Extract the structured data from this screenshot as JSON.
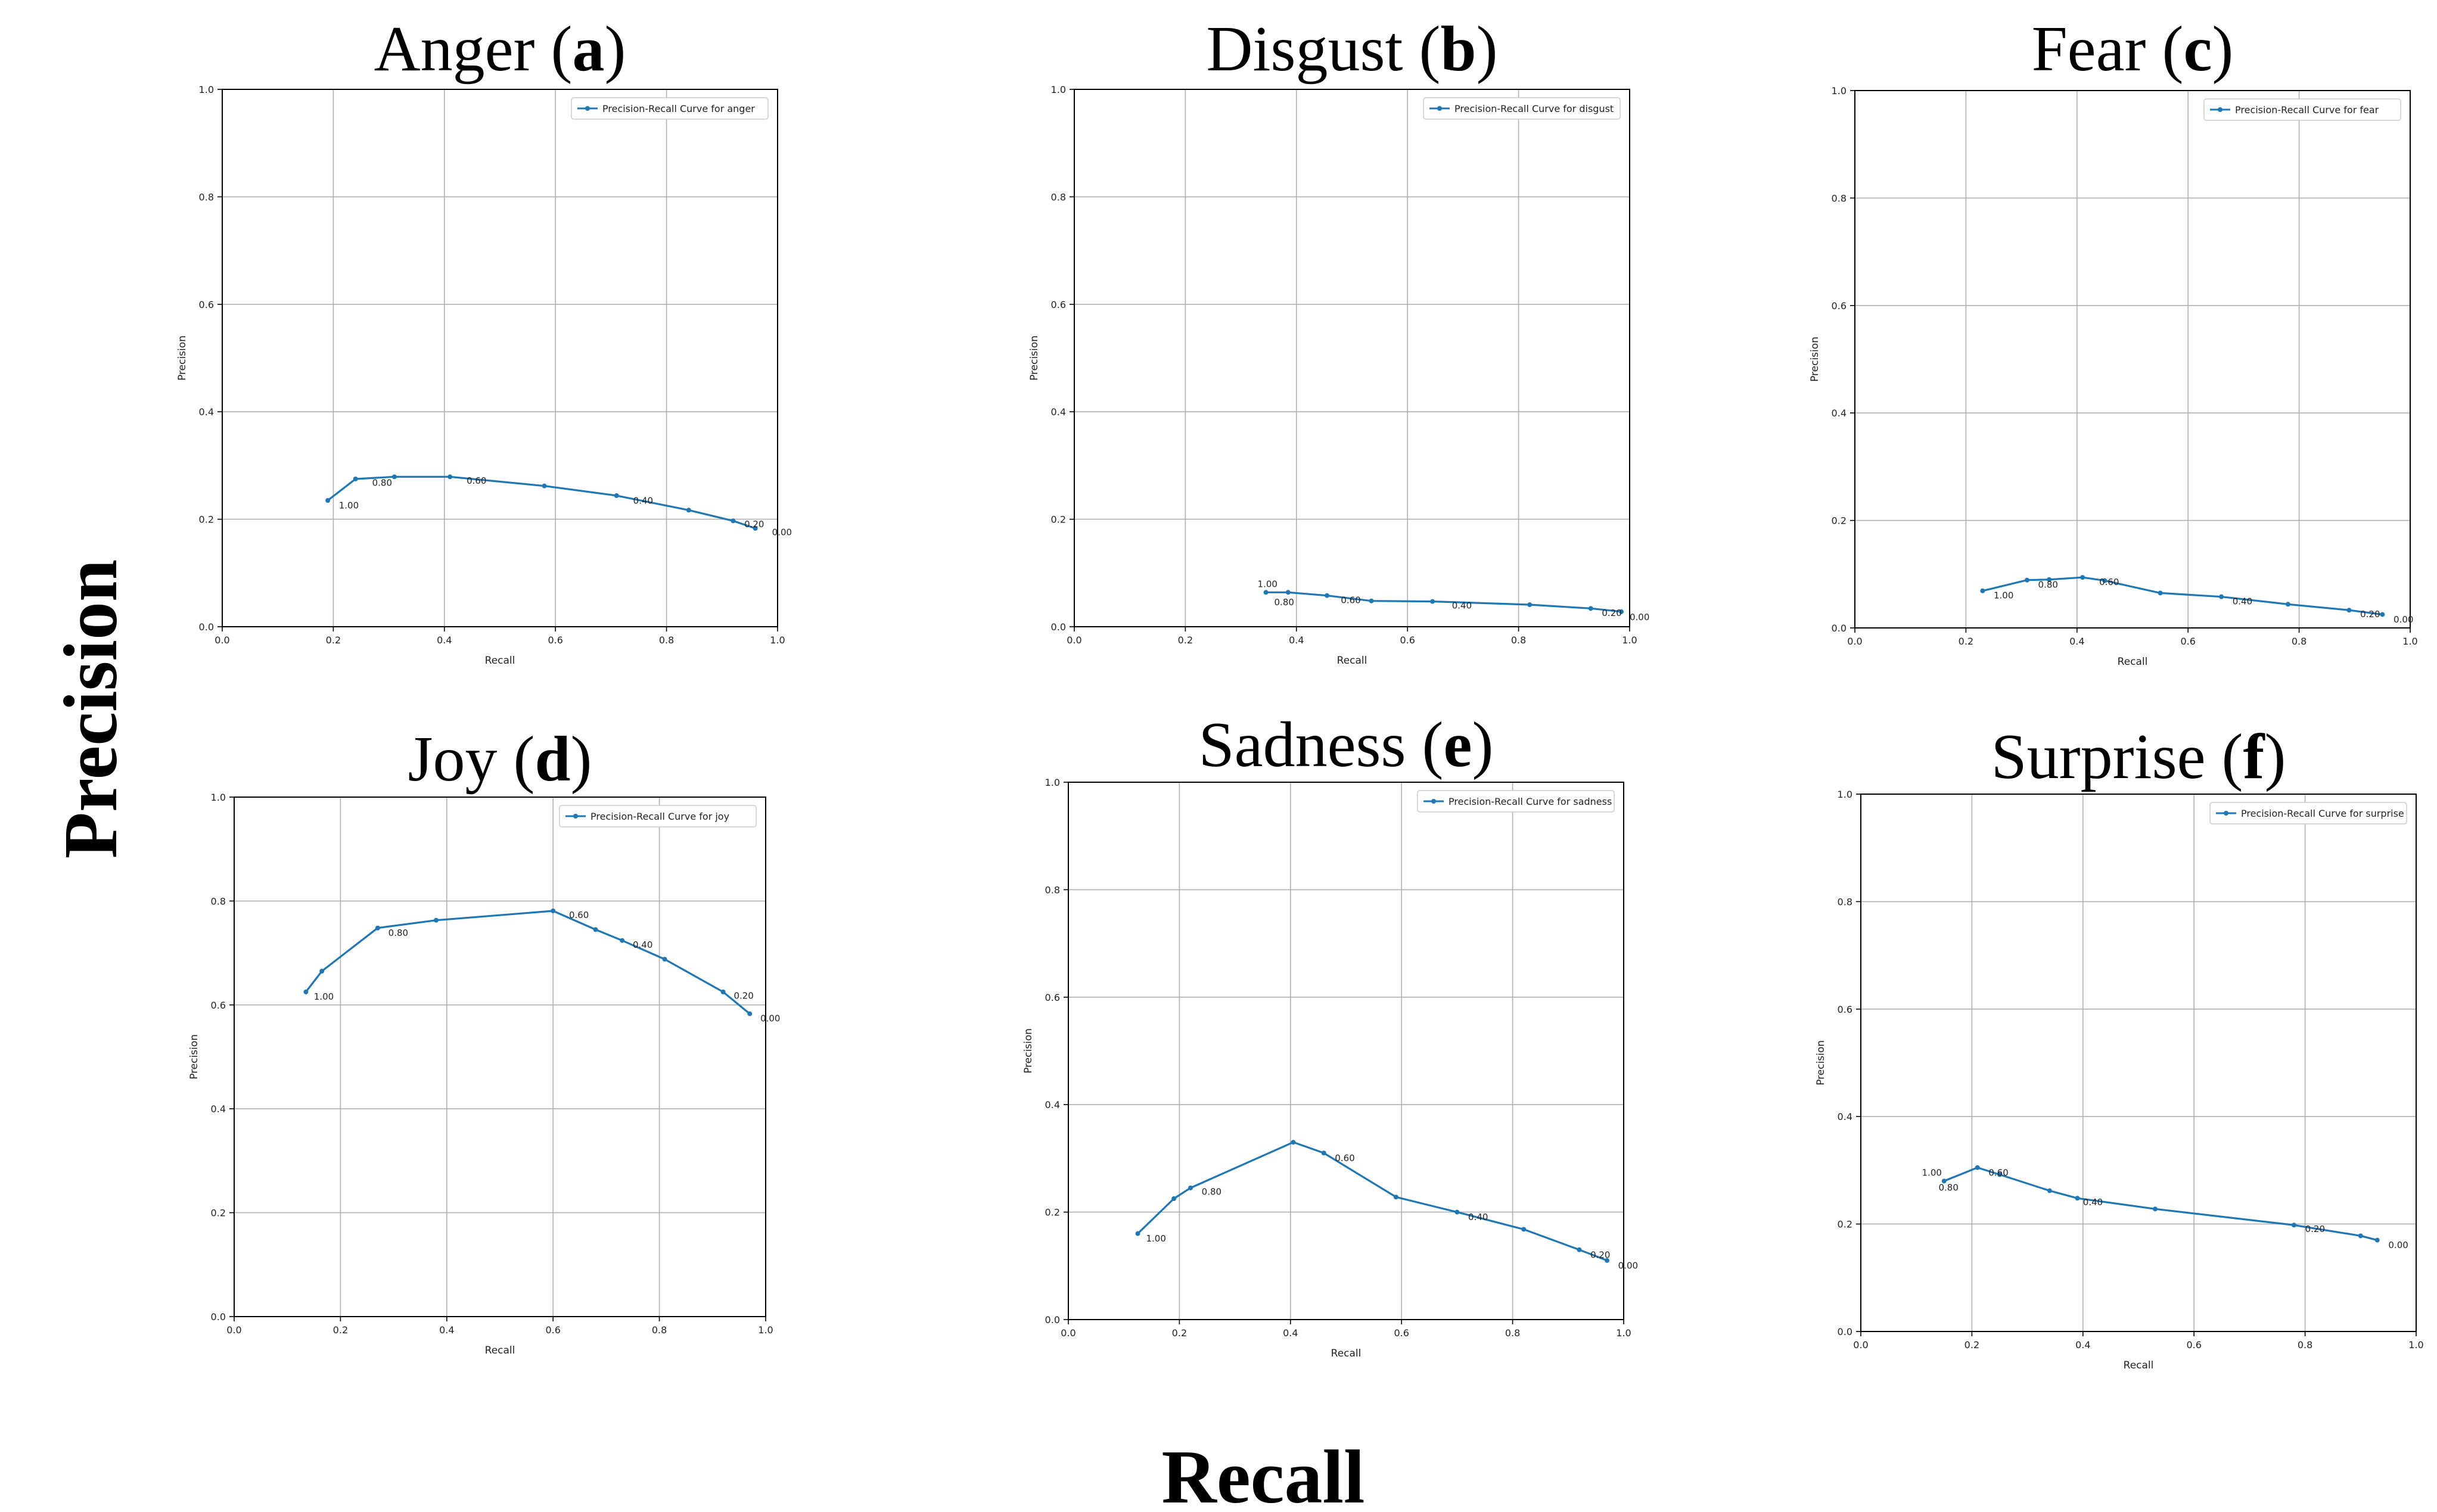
{
  "figure": {
    "y_label": "Precision",
    "x_label": "Recall"
  },
  "colors": {
    "line": "#1f77b4",
    "grid": "#b0b0b0",
    "axis": "#000000"
  },
  "chart_data": [
    {
      "id": "a",
      "type": "line",
      "title_name": "Anger",
      "title_letter": "a",
      "xlabel": "Recall",
      "ylabel": "Precision",
      "xlim": [
        0,
        1
      ],
      "ylim": [
        0,
        1
      ],
      "xticks": [
        "0.0",
        "0.2",
        "0.4",
        "0.6",
        "0.8",
        "1.0"
      ],
      "yticks": [
        "0.0",
        "0.2",
        "0.4",
        "0.6",
        "0.8",
        "1.0"
      ],
      "legend": "Precision-Recall Curve for anger",
      "grid": true,
      "legend_loc": "upper right",
      "series": [
        {
          "name": "Precision-Recall Curve for anger",
          "x": [
            0.19,
            0.24,
            0.31,
            0.41,
            0.58,
            0.71,
            0.84,
            0.92,
            0.96
          ],
          "y": [
            0.235,
            0.275,
            0.279,
            0.279,
            0.262,
            0.244,
            0.217,
            0.197,
            0.183
          ]
        }
      ],
      "annotations": [
        {
          "text": "1.00",
          "x": 0.21,
          "y": 0.22
        },
        {
          "text": "0.80",
          "x": 0.27,
          "y": 0.262
        },
        {
          "text": "0.60",
          "x": 0.44,
          "y": 0.266
        },
        {
          "text": "0.40",
          "x": 0.74,
          "y": 0.229
        },
        {
          "text": "0.20",
          "x": 0.94,
          "y": 0.185
        },
        {
          "text": "0.00",
          "x": 0.99,
          "y": 0.17
        }
      ]
    },
    {
      "id": "b",
      "type": "line",
      "title_name": "Disgust",
      "title_letter": "b",
      "xlabel": "Recall",
      "ylabel": "Precision",
      "xlim": [
        0,
        1
      ],
      "ylim": [
        0,
        1
      ],
      "xticks": [
        "0.0",
        "0.2",
        "0.4",
        "0.6",
        "0.8",
        "1.0"
      ],
      "yticks": [
        "0.0",
        "0.2",
        "0.4",
        "0.6",
        "0.8",
        "1.0"
      ],
      "legend": "Precision-Recall Curve for disgust",
      "grid": true,
      "legend_loc": "upper right",
      "series": [
        {
          "name": "Precision-Recall Curve for disgust",
          "x": [
            0.345,
            0.385,
            0.455,
            0.535,
            0.645,
            0.82,
            0.93,
            0.985
          ],
          "y": [
            0.064,
            0.064,
            0.058,
            0.048,
            0.047,
            0.041,
            0.034,
            0.028
          ]
        }
      ],
      "annotations": [
        {
          "text": "1.00",
          "x": 0.33,
          "y": 0.074
        },
        {
          "text": "0.80",
          "x": 0.36,
          "y": 0.04
        },
        {
          "text": "0.60",
          "x": 0.48,
          "y": 0.044
        },
        {
          "text": "0.40",
          "x": 0.68,
          "y": 0.034
        },
        {
          "text": "0.20",
          "x": 0.95,
          "y": 0.02
        },
        {
          "text": "0.00",
          "x": 1.0,
          "y": 0.012
        }
      ]
    },
    {
      "id": "c",
      "type": "line",
      "title_name": "Fear",
      "title_letter": "c",
      "xlabel": "Recall",
      "ylabel": "Precision",
      "xlim": [
        0,
        1
      ],
      "ylim": [
        0,
        1
      ],
      "xticks": [
        "0.0",
        "0.2",
        "0.4",
        "0.6",
        "0.8",
        "1.0"
      ],
      "yticks": [
        "0.0",
        "0.2",
        "0.4",
        "0.6",
        "0.8",
        "1.0"
      ],
      "legend": "Precision-Recall Curve for fear",
      "grid": true,
      "legend_loc": "upper right",
      "series": [
        {
          "name": "Precision-Recall Curve for fear",
          "x": [
            0.23,
            0.31,
            0.35,
            0.41,
            0.45,
            0.55,
            0.66,
            0.78,
            0.89,
            0.95
          ],
          "y": [
            0.069,
            0.089,
            0.09,
            0.094,
            0.088,
            0.065,
            0.058,
            0.044,
            0.033,
            0.025
          ]
        }
      ],
      "annotations": [
        {
          "text": "1.00",
          "x": 0.25,
          "y": 0.055
        },
        {
          "text": "0.80",
          "x": 0.33,
          "y": 0.075
        },
        {
          "text": "0.60",
          "x": 0.44,
          "y": 0.08
        },
        {
          "text": "0.40",
          "x": 0.68,
          "y": 0.044
        },
        {
          "text": "0.20",
          "x": 0.91,
          "y": 0.02
        },
        {
          "text": "0.00",
          "x": 0.97,
          "y": 0.01
        }
      ]
    },
    {
      "id": "d",
      "type": "line",
      "title_name": "Joy",
      "title_letter": "d",
      "xlabel": "Recall",
      "ylabel": "Precision",
      "xlim": [
        0,
        1
      ],
      "ylim": [
        0,
        1
      ],
      "xticks": [
        "0.0",
        "0.2",
        "0.4",
        "0.6",
        "0.8",
        "1.0"
      ],
      "yticks": [
        "0.0",
        "0.2",
        "0.4",
        "0.6",
        "0.8",
        "1.0"
      ],
      "legend": "Precision-Recall Curve for joy",
      "grid": true,
      "legend_loc": "upper right",
      "series": [
        {
          "name": "Precision-Recall Curve for joy",
          "x": [
            0.135,
            0.165,
            0.27,
            0.38,
            0.6,
            0.68,
            0.73,
            0.81,
            0.92,
            0.97
          ],
          "y": [
            0.625,
            0.665,
            0.748,
            0.763,
            0.781,
            0.745,
            0.724,
            0.688,
            0.625,
            0.583
          ]
        }
      ],
      "annotations": [
        {
          "text": "1.00",
          "x": 0.15,
          "y": 0.61
        },
        {
          "text": "0.80",
          "x": 0.29,
          "y": 0.733
        },
        {
          "text": "0.60",
          "x": 0.63,
          "y": 0.767
        },
        {
          "text": "0.40",
          "x": 0.75,
          "y": 0.71
        },
        {
          "text": "0.20",
          "x": 0.94,
          "y": 0.612
        },
        {
          "text": "0.00",
          "x": 0.99,
          "y": 0.568
        }
      ]
    },
    {
      "id": "e",
      "type": "line",
      "title_name": "Sadness",
      "title_letter": "e",
      "xlabel": "Recall",
      "ylabel": "Precision",
      "xlim": [
        0,
        1
      ],
      "ylim": [
        0,
        1
      ],
      "xticks": [
        "0.0",
        "0.2",
        "0.4",
        "0.6",
        "0.8",
        "1.0"
      ],
      "yticks": [
        "0.0",
        "0.2",
        "0.4",
        "0.6",
        "0.8",
        "1.0"
      ],
      "legend": "Precision-Recall Curve for sadness",
      "grid": true,
      "legend_loc": "upper right",
      "series": [
        {
          "name": "Precision-Recall Curve for sadness",
          "x": [
            0.125,
            0.19,
            0.22,
            0.405,
            0.46,
            0.59,
            0.7,
            0.82,
            0.92,
            0.97
          ],
          "y": [
            0.16,
            0.225,
            0.245,
            0.33,
            0.31,
            0.228,
            0.2,
            0.168,
            0.13,
            0.11
          ]
        }
      ],
      "annotations": [
        {
          "text": "1.00",
          "x": 0.14,
          "y": 0.145
        },
        {
          "text": "0.80",
          "x": 0.24,
          "y": 0.232
        },
        {
          "text": "0.60",
          "x": 0.48,
          "y": 0.295
        },
        {
          "text": "0.40",
          "x": 0.72,
          "y": 0.185
        },
        {
          "text": "0.20",
          "x": 0.94,
          "y": 0.115
        },
        {
          "text": "0.00",
          "x": 0.99,
          "y": 0.095
        }
      ]
    },
    {
      "id": "f",
      "type": "line",
      "title_name": "Surprise",
      "title_letter": "f",
      "xlabel": "Recall",
      "ylabel": "Precision",
      "xlim": [
        0,
        1
      ],
      "ylim": [
        0,
        1
      ],
      "xticks": [
        "0.0",
        "0.2",
        "0.4",
        "0.6",
        "0.8",
        "1.0"
      ],
      "yticks": [
        "0.0",
        "0.2",
        "0.4",
        "0.6",
        "0.8",
        "1.0"
      ],
      "legend": "Precision-Recall Curve for surprise",
      "grid": true,
      "legend_loc": "upper right",
      "series": [
        {
          "name": "Precision-Recall Curve for surprise",
          "x": [
            0.15,
            0.21,
            0.25,
            0.34,
            0.39,
            0.53,
            0.78,
            0.9,
            0.93
          ],
          "y": [
            0.28,
            0.305,
            0.292,
            0.262,
            0.248,
            0.228,
            0.198,
            0.178,
            0.17
          ]
        }
      ],
      "annotations": [
        {
          "text": "1.00",
          "x": 0.11,
          "y": 0.29
        },
        {
          "text": "0.80",
          "x": 0.14,
          "y": 0.262
        },
        {
          "text": "0.60",
          "x": 0.23,
          "y": 0.29
        },
        {
          "text": "0.40",
          "x": 0.4,
          "y": 0.235
        },
        {
          "text": "0.20",
          "x": 0.8,
          "y": 0.185
        },
        {
          "text": "0.00",
          "x": 0.95,
          "y": 0.155
        }
      ]
    }
  ]
}
